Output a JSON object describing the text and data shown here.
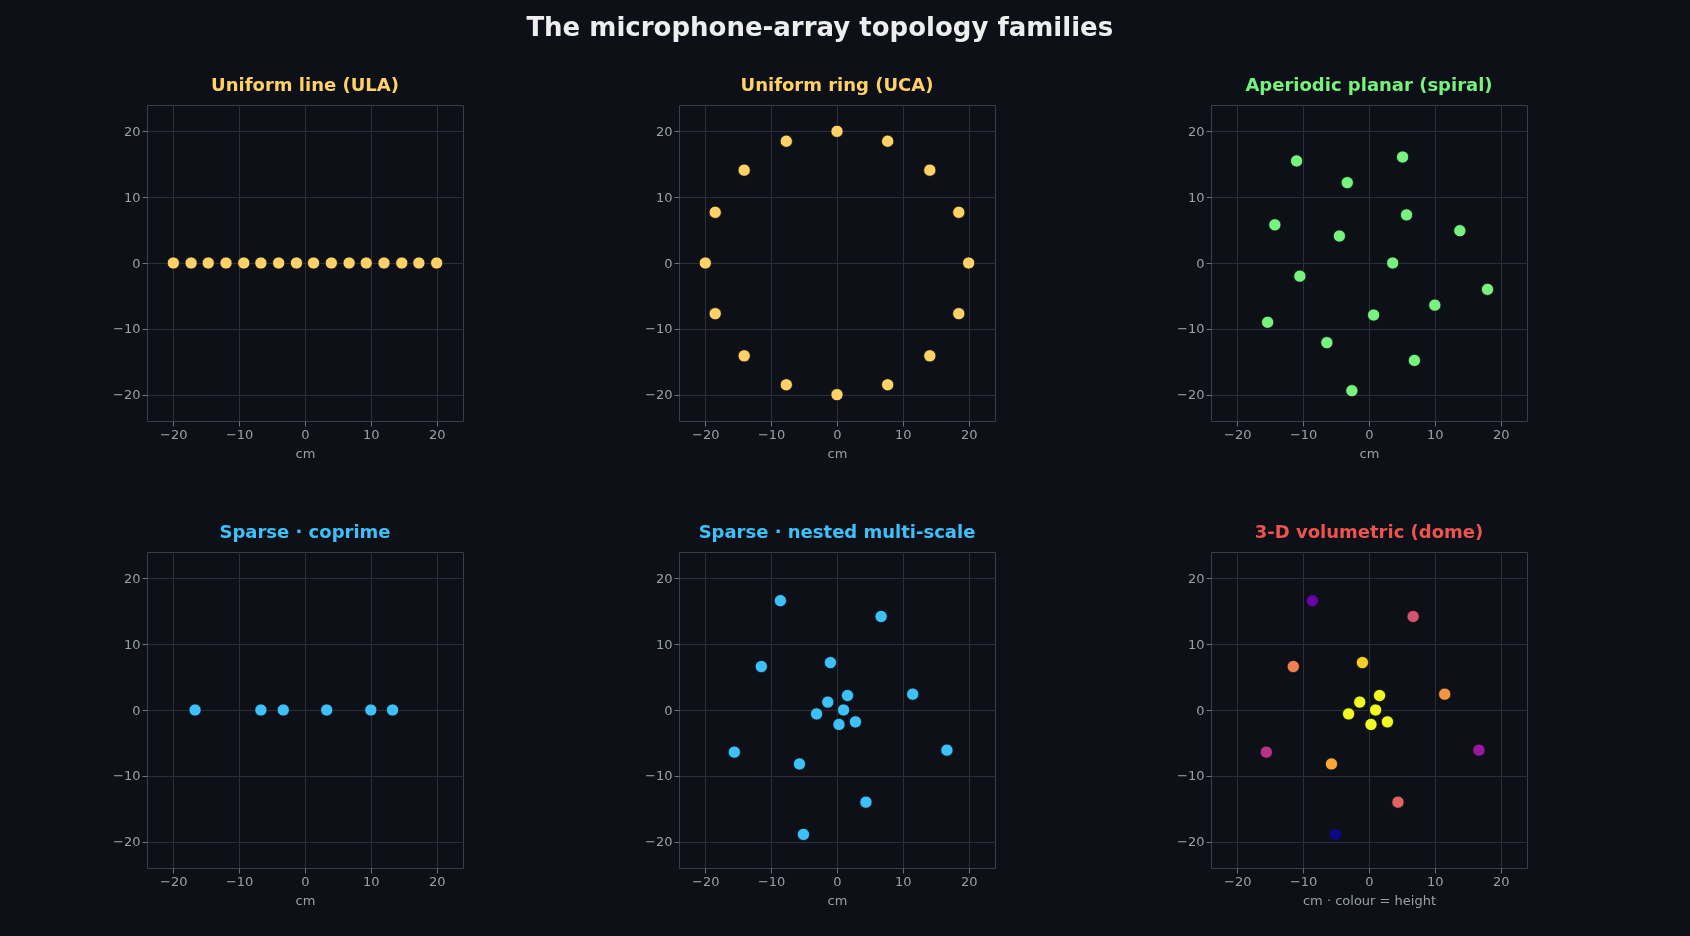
{
  "chart_data": [
    {
      "type": "scatter",
      "title": "Uniform line (ULA)",
      "xlabel": "cm",
      "annotations": [
        "The microphone-array topology families"
      ],
      "x": [
        -20,
        -17.3,
        -14.7,
        -12,
        -9.3,
        -6.7,
        -4,
        -1.3,
        1.3,
        4,
        6.7,
        9.3,
        12,
        14.7,
        17.3,
        20
      ],
      "color": "#ffd166",
      "values": [
        0,
        0,
        0,
        0,
        0,
        0,
        0,
        0,
        0,
        0,
        0,
        0,
        0,
        0,
        0,
        0
      ],
      "xlim": [
        -24,
        24
      ],
      "ylim": [
        -24,
        24
      ],
      "xticks": [
        -20,
        -10,
        0,
        10,
        20
      ],
      "yticks": [
        -20,
        -10,
        0,
        10,
        20
      ],
      "grid": true,
      "marker": "circle"
    },
    {
      "type": "scatter",
      "title": "Uniform ring (UCA)",
      "xlabel": "cm",
      "x": [
        20,
        18.5,
        14.1,
        7.7,
        0,
        -7.7,
        -14.1,
        -18.5,
        -20,
        -18.5,
        -14.1,
        -7.7,
        0,
        7.7,
        14.1,
        18.5
      ],
      "color": "#ffd166",
      "values": [
        0,
        7.7,
        14.1,
        18.5,
        20,
        18.5,
        14.1,
        7.7,
        0,
        -7.7,
        -14.1,
        -18.5,
        -20,
        -18.5,
        -14.1,
        -7.7
      ],
      "xlim": [
        -24,
        24
      ],
      "ylim": [
        -24,
        24
      ],
      "xticks": [
        -20,
        -10,
        0,
        10,
        20
      ],
      "yticks": [
        -20,
        -10,
        0,
        10,
        20
      ],
      "grid": true,
      "marker": "circle"
    },
    {
      "type": "scatter",
      "title": "Aperiodic planar (spiral)",
      "xlabel": "cm",
      "x": [
        -11.0,
        5.1,
        -3.3,
        -14.3,
        5.7,
        13.8,
        -4.5,
        3.6,
        -10.5,
        18.0,
        10.0,
        0.7,
        -15.4,
        -6.4,
        6.9,
        -2.6
      ],
      "color": "#77f27f",
      "values": [
        15.5,
        16.1,
        12.2,
        5.8,
        7.3,
        4.9,
        4.1,
        0,
        -2.0,
        -4.0,
        -6.4,
        -7.9,
        -9.0,
        -12.1,
        -14.8,
        -19.4
      ],
      "xlim": [
        -24,
        24
      ],
      "ylim": [
        -24,
        24
      ],
      "xticks": [
        -20,
        -10,
        0,
        10,
        20
      ],
      "yticks": [
        -20,
        -10,
        0,
        10,
        20
      ],
      "grid": true,
      "marker": "circle"
    },
    {
      "type": "scatter",
      "title": "Sparse · coprime",
      "xlabel": "cm",
      "x": [
        -16.7,
        -6.7,
        -3.3,
        3.3,
        10.0,
        13.3
      ],
      "color": "#3ec1fb",
      "values": [
        0,
        0,
        0,
        0,
        0,
        0
      ],
      "xlim": [
        -24,
        24
      ],
      "ylim": [
        -24,
        24
      ],
      "xticks": [
        -20,
        -10,
        0,
        10,
        20
      ],
      "yticks": [
        -20,
        -10,
        0,
        10,
        20
      ],
      "grid": true,
      "marker": "circle"
    },
    {
      "type": "scatter",
      "title": "Sparse · nested multi-scale",
      "xlabel": "cm",
      "x": [
        -8.6,
        6.7,
        -11.5,
        -1.0,
        11.5,
        1.6,
        -1.4,
        1.0,
        -3.1,
        2.8,
        0.3,
        -15.6,
        16.7,
        -5.7,
        4.4,
        -5.1
      ],
      "color": "#3ec1fb",
      "values": [
        16.6,
        14.2,
        6.6,
        7.2,
        2.4,
        2.2,
        1.2,
        0,
        -0.6,
        -1.8,
        -2.2,
        -6.4,
        -6.1,
        -8.2,
        -14.0,
        -18.9
      ],
      "xlim": [
        -24,
        24
      ],
      "ylim": [
        -24,
        24
      ],
      "xticks": [
        -20,
        -10,
        0,
        10,
        20
      ],
      "yticks": [
        -20,
        -10,
        0,
        10,
        20
      ],
      "grid": true,
      "marker": "circle"
    },
    {
      "type": "scatter",
      "title": "3-D volumetric (dome)",
      "xlabel": "cm  ·  colour = height",
      "x": [
        -8.6,
        6.7,
        -11.5,
        -1.0,
        11.5,
        1.6,
        -1.4,
        1.0,
        -3.1,
        2.8,
        0.3,
        -15.6,
        16.7,
        -5.7,
        4.4,
        -5.1
      ],
      "colors": [
        "#6a00a8",
        "#d5536f",
        "#f0804f",
        "#fcce25",
        "#f89540",
        "#f0f921",
        "#f0f921",
        "#f0f921",
        "#f0f921",
        "#f0f921",
        "#f0f921",
        "#b83289",
        "#9c179e",
        "#fca636",
        "#e16462",
        "#0d0887"
      ],
      "values": [
        16.6,
        14.2,
        6.6,
        7.2,
        2.4,
        2.2,
        1.2,
        0,
        -0.6,
        -1.8,
        -2.2,
        -6.4,
        -6.1,
        -8.2,
        -14.0,
        -18.9
      ],
      "xlim": [
        -24,
        24
      ],
      "ylim": [
        -24,
        24
      ],
      "xticks": [
        -20,
        -10,
        0,
        10,
        20
      ],
      "yticks": [
        -20,
        -10,
        0,
        10,
        20
      ],
      "grid": true,
      "marker": "circle"
    }
  ]
}
